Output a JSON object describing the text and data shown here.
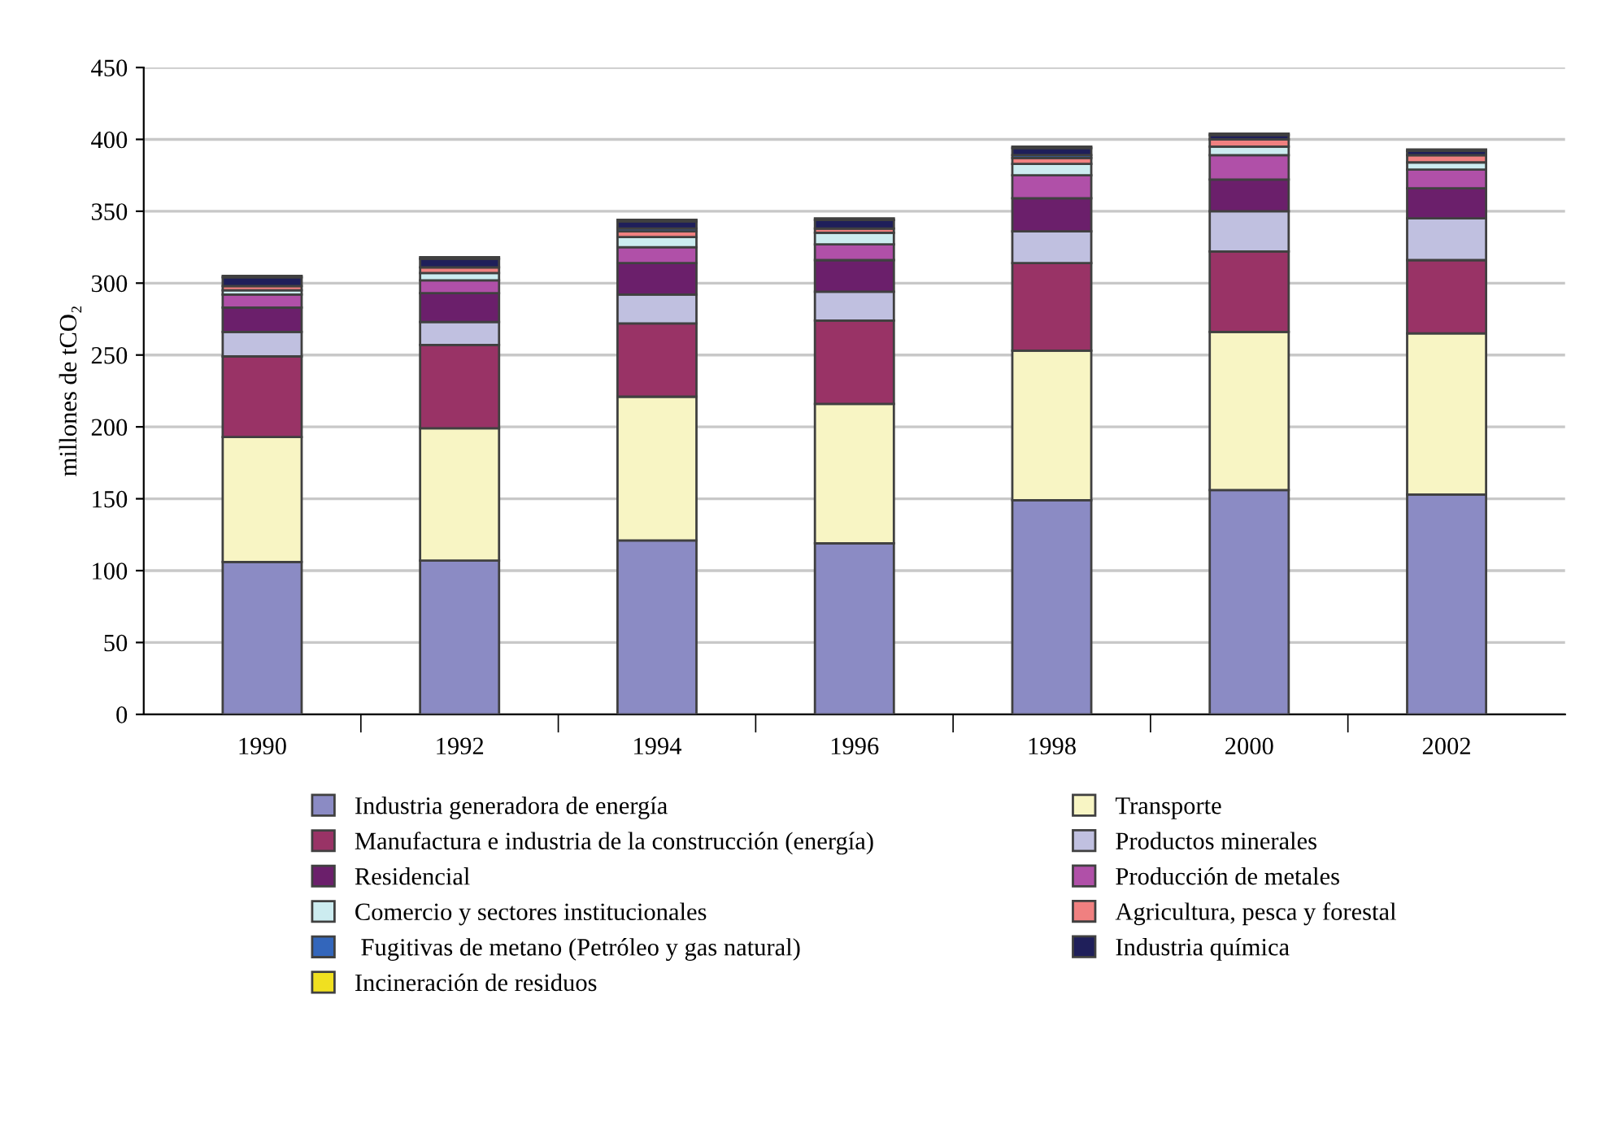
{
  "chart_data": {
    "type": "bar",
    "stacked": true,
    "ylabel": "millones de tCO₂",
    "categories": [
      "1990",
      "1992",
      "1994",
      "1996",
      "1998",
      "2000",
      "2002"
    ],
    "ylim": [
      0,
      450
    ],
    "yticks": [
      0,
      50,
      100,
      150,
      200,
      250,
      300,
      350,
      400,
      450
    ],
    "grid": "y",
    "legend": "bottom",
    "series": [
      {
        "name": "Industria generadora de energía",
        "color": "#8b8bc4",
        "values": [
          106,
          107,
          121,
          119,
          149,
          156,
          153
        ]
      },
      {
        "name": "Transporte",
        "color": "#f8f5c4",
        "values": [
          87,
          92,
          100,
          97,
          104,
          110,
          112
        ]
      },
      {
        "name": "Manufactura e industria de la construcción (energía)",
        "color": "#993366",
        "values": [
          56,
          58,
          51,
          58,
          61,
          56,
          51
        ]
      },
      {
        "name": "Productos minerales",
        "color": "#c0c0e0",
        "values": [
          17,
          16,
          20,
          20,
          22,
          28,
          29
        ]
      },
      {
        "name": "Residencial",
        "color": "#6b1f6b",
        "values": [
          17,
          20,
          22,
          22,
          23,
          22,
          21
        ]
      },
      {
        "name": "Producción de metales",
        "color": "#b050a8",
        "values": [
          9,
          9,
          11,
          11,
          16,
          17,
          13
        ]
      },
      {
        "name": "Comercio y sectores institucionales",
        "color": "#ccecf0",
        "values": [
          3,
          5,
          7,
          8,
          8,
          6,
          5
        ]
      },
      {
        "name": "Agricultura, pesca y forestal",
        "color": "#f08080",
        "values": [
          3,
          4,
          4,
          3,
          4,
          5,
          5
        ]
      },
      {
        "name": " Fugitivas de metano (Petróleo y gas natural)",
        "color": "#3366bb",
        "values": [
          null,
          null,
          2,
          null,
          2,
          null,
          null
        ]
      },
      {
        "name": "Industria química",
        "color": "#1f1f5a",
        "values": [
          6,
          6,
          5,
          6,
          5,
          3,
          3
        ]
      },
      {
        "name": "Incineración de residuos",
        "color": "#f0e020",
        "values": [
          1,
          1,
          1,
          1,
          1,
          1,
          1
        ]
      }
    ]
  }
}
